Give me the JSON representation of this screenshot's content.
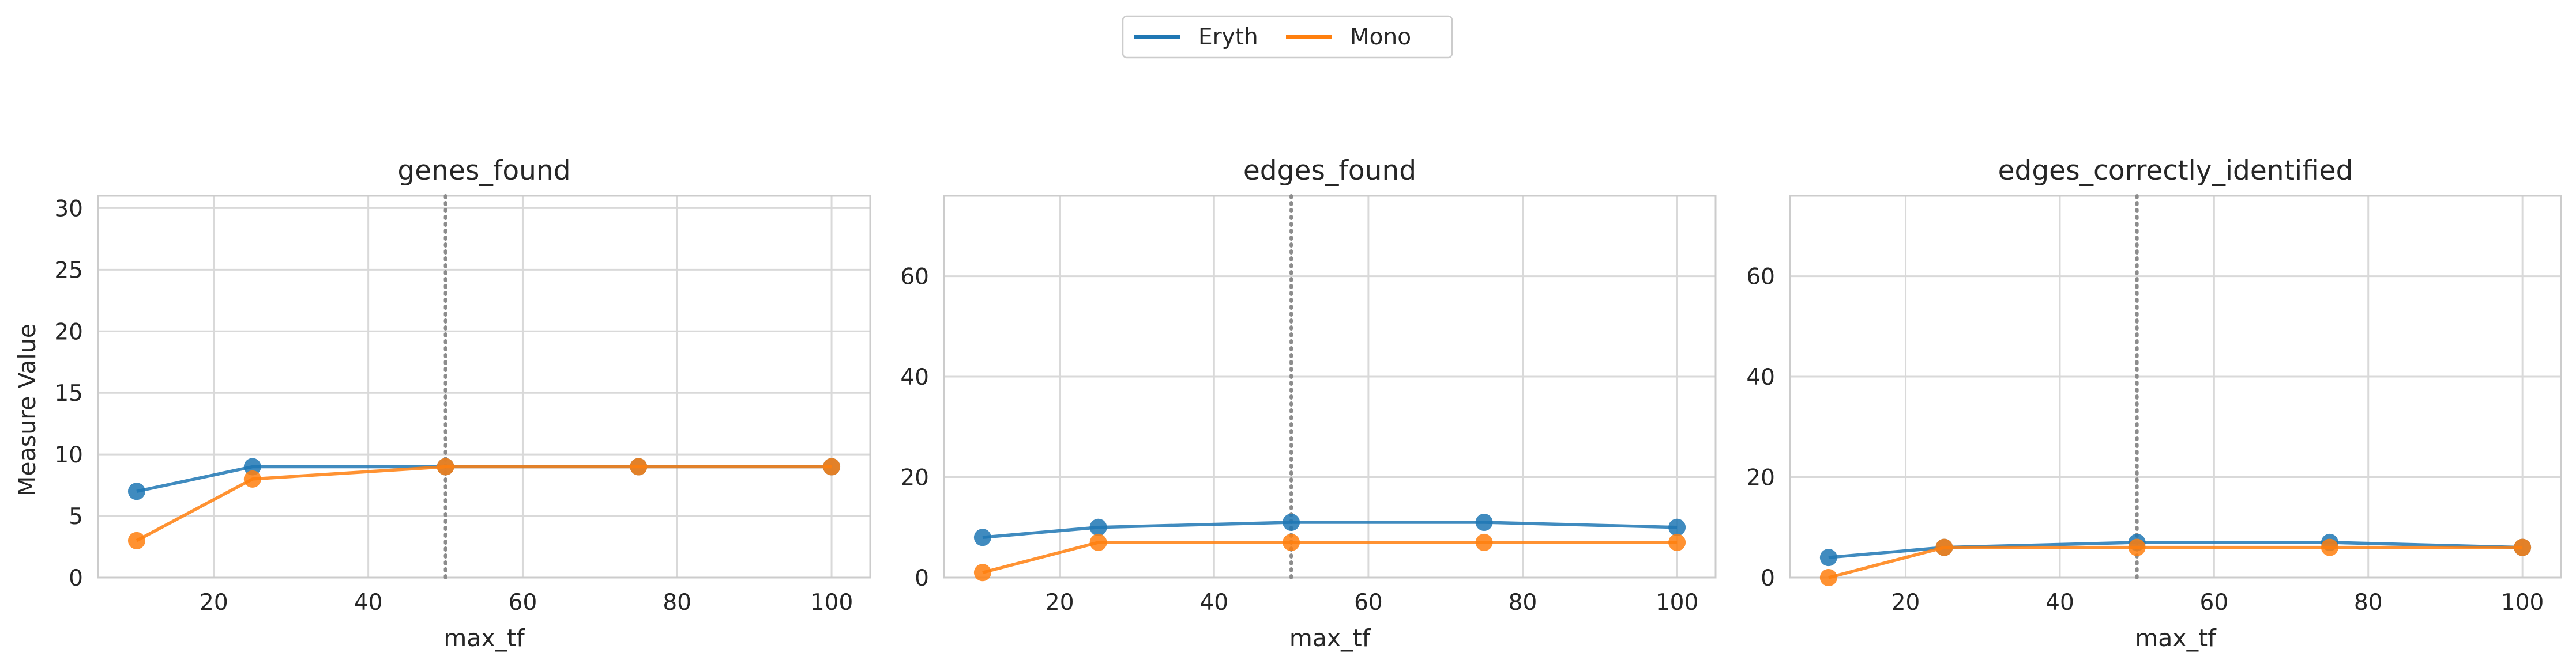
{
  "legend": [
    {
      "name": "Eryth",
      "color": "#1f77b4"
    },
    {
      "name": "Mono",
      "color": "#ff7f0e"
    }
  ],
  "ylabel": "Measure Value",
  "chart_data": [
    {
      "type": "line",
      "title": "genes_found",
      "xlabel": "max_tf",
      "ylabel": "Measure Value",
      "x": [
        10,
        25,
        50,
        75,
        100
      ],
      "xlim": [
        5,
        105
      ],
      "ylim": [
        0,
        31
      ],
      "xticks": [
        20,
        40,
        60,
        80,
        100
      ],
      "yticks": [
        0,
        5,
        10,
        15,
        20,
        25,
        30
      ],
      "vline": 50,
      "grid": true,
      "series": [
        {
          "name": "Eryth",
          "values": [
            7,
            9,
            9,
            9,
            9
          ]
        },
        {
          "name": "Mono",
          "values": [
            3,
            8,
            9,
            9,
            9
          ]
        }
      ]
    },
    {
      "type": "line",
      "title": "edges_found",
      "xlabel": "max_tf",
      "ylabel": "",
      "x": [
        10,
        25,
        50,
        75,
        100
      ],
      "xlim": [
        5,
        105
      ],
      "ylim": [
        0,
        76
      ],
      "xticks": [
        20,
        40,
        60,
        80,
        100
      ],
      "yticks": [
        0,
        20,
        40,
        60
      ],
      "vline": 50,
      "grid": true,
      "series": [
        {
          "name": "Eryth",
          "values": [
            8,
            10,
            11,
            11,
            10
          ]
        },
        {
          "name": "Mono",
          "values": [
            1,
            7,
            7,
            7,
            7
          ]
        }
      ]
    },
    {
      "type": "line",
      "title": "edges_correctly_identified",
      "xlabel": "max_tf",
      "ylabel": "",
      "x": [
        10,
        25,
        50,
        75,
        100
      ],
      "xlim": [
        5,
        105
      ],
      "ylim": [
        0,
        76
      ],
      "xticks": [
        20,
        40,
        60,
        80,
        100
      ],
      "yticks": [
        0,
        20,
        40,
        60
      ],
      "vline": 50,
      "grid": true,
      "series": [
        {
          "name": "Eryth",
          "values": [
            4,
            6,
            7,
            7,
            6
          ]
        },
        {
          "name": "Mono",
          "values": [
            0,
            6,
            6,
            6,
            6
          ]
        }
      ]
    }
  ]
}
